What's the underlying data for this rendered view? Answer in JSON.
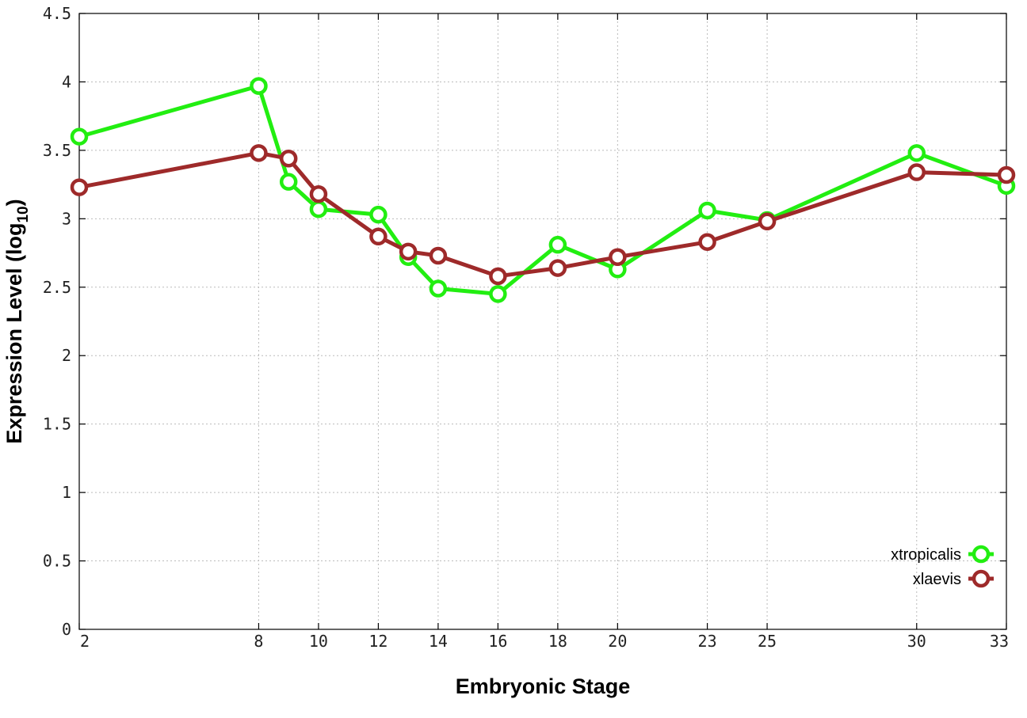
{
  "chart_data": {
    "type": "line",
    "title": "",
    "xlabel": "Embryonic Stage",
    "ylabel_main": "Expression Level (log",
    "ylabel_sub": "10",
    "ylabel_close": ")",
    "x": [
      2,
      8,
      9,
      10,
      12,
      13,
      14,
      16,
      18,
      20,
      23,
      25,
      30,
      33
    ],
    "xticks": [
      2,
      8,
      10,
      12,
      14,
      16,
      18,
      20,
      23,
      25,
      30,
      33
    ],
    "xtick_labels": [
      "2",
      "8",
      "10",
      "12",
      "14",
      "16",
      "18",
      "20",
      "23",
      "25",
      "30",
      "33"
    ],
    "yticks": [
      0,
      0.5,
      1,
      1.5,
      2,
      2.5,
      3,
      3.5,
      4,
      4.5
    ],
    "ytick_labels": [
      "0",
      "0.5",
      "1",
      "1.5",
      "2",
      "2.5",
      "3",
      "3.5",
      "4",
      "4.5"
    ],
    "xlim": [
      2,
      33
    ],
    "ylim": [
      0,
      4.5
    ],
    "grid": true,
    "legend_position": "bottom-right",
    "series": [
      {
        "name": "xtropicalis",
        "color": "#22ee11",
        "marker": "open-circle",
        "values": [
          3.6,
          3.97,
          3.27,
          3.07,
          3.03,
          2.72,
          2.49,
          2.45,
          2.81,
          2.63,
          3.06,
          2.99,
          3.48,
          3.24
        ]
      },
      {
        "name": "xlaevis",
        "color": "#9e2a2a",
        "marker": "open-circle",
        "values": [
          3.23,
          3.48,
          3.44,
          3.18,
          2.87,
          2.76,
          2.73,
          2.58,
          2.64,
          2.72,
          2.83,
          2.98,
          3.34,
          3.32
        ]
      }
    ]
  }
}
